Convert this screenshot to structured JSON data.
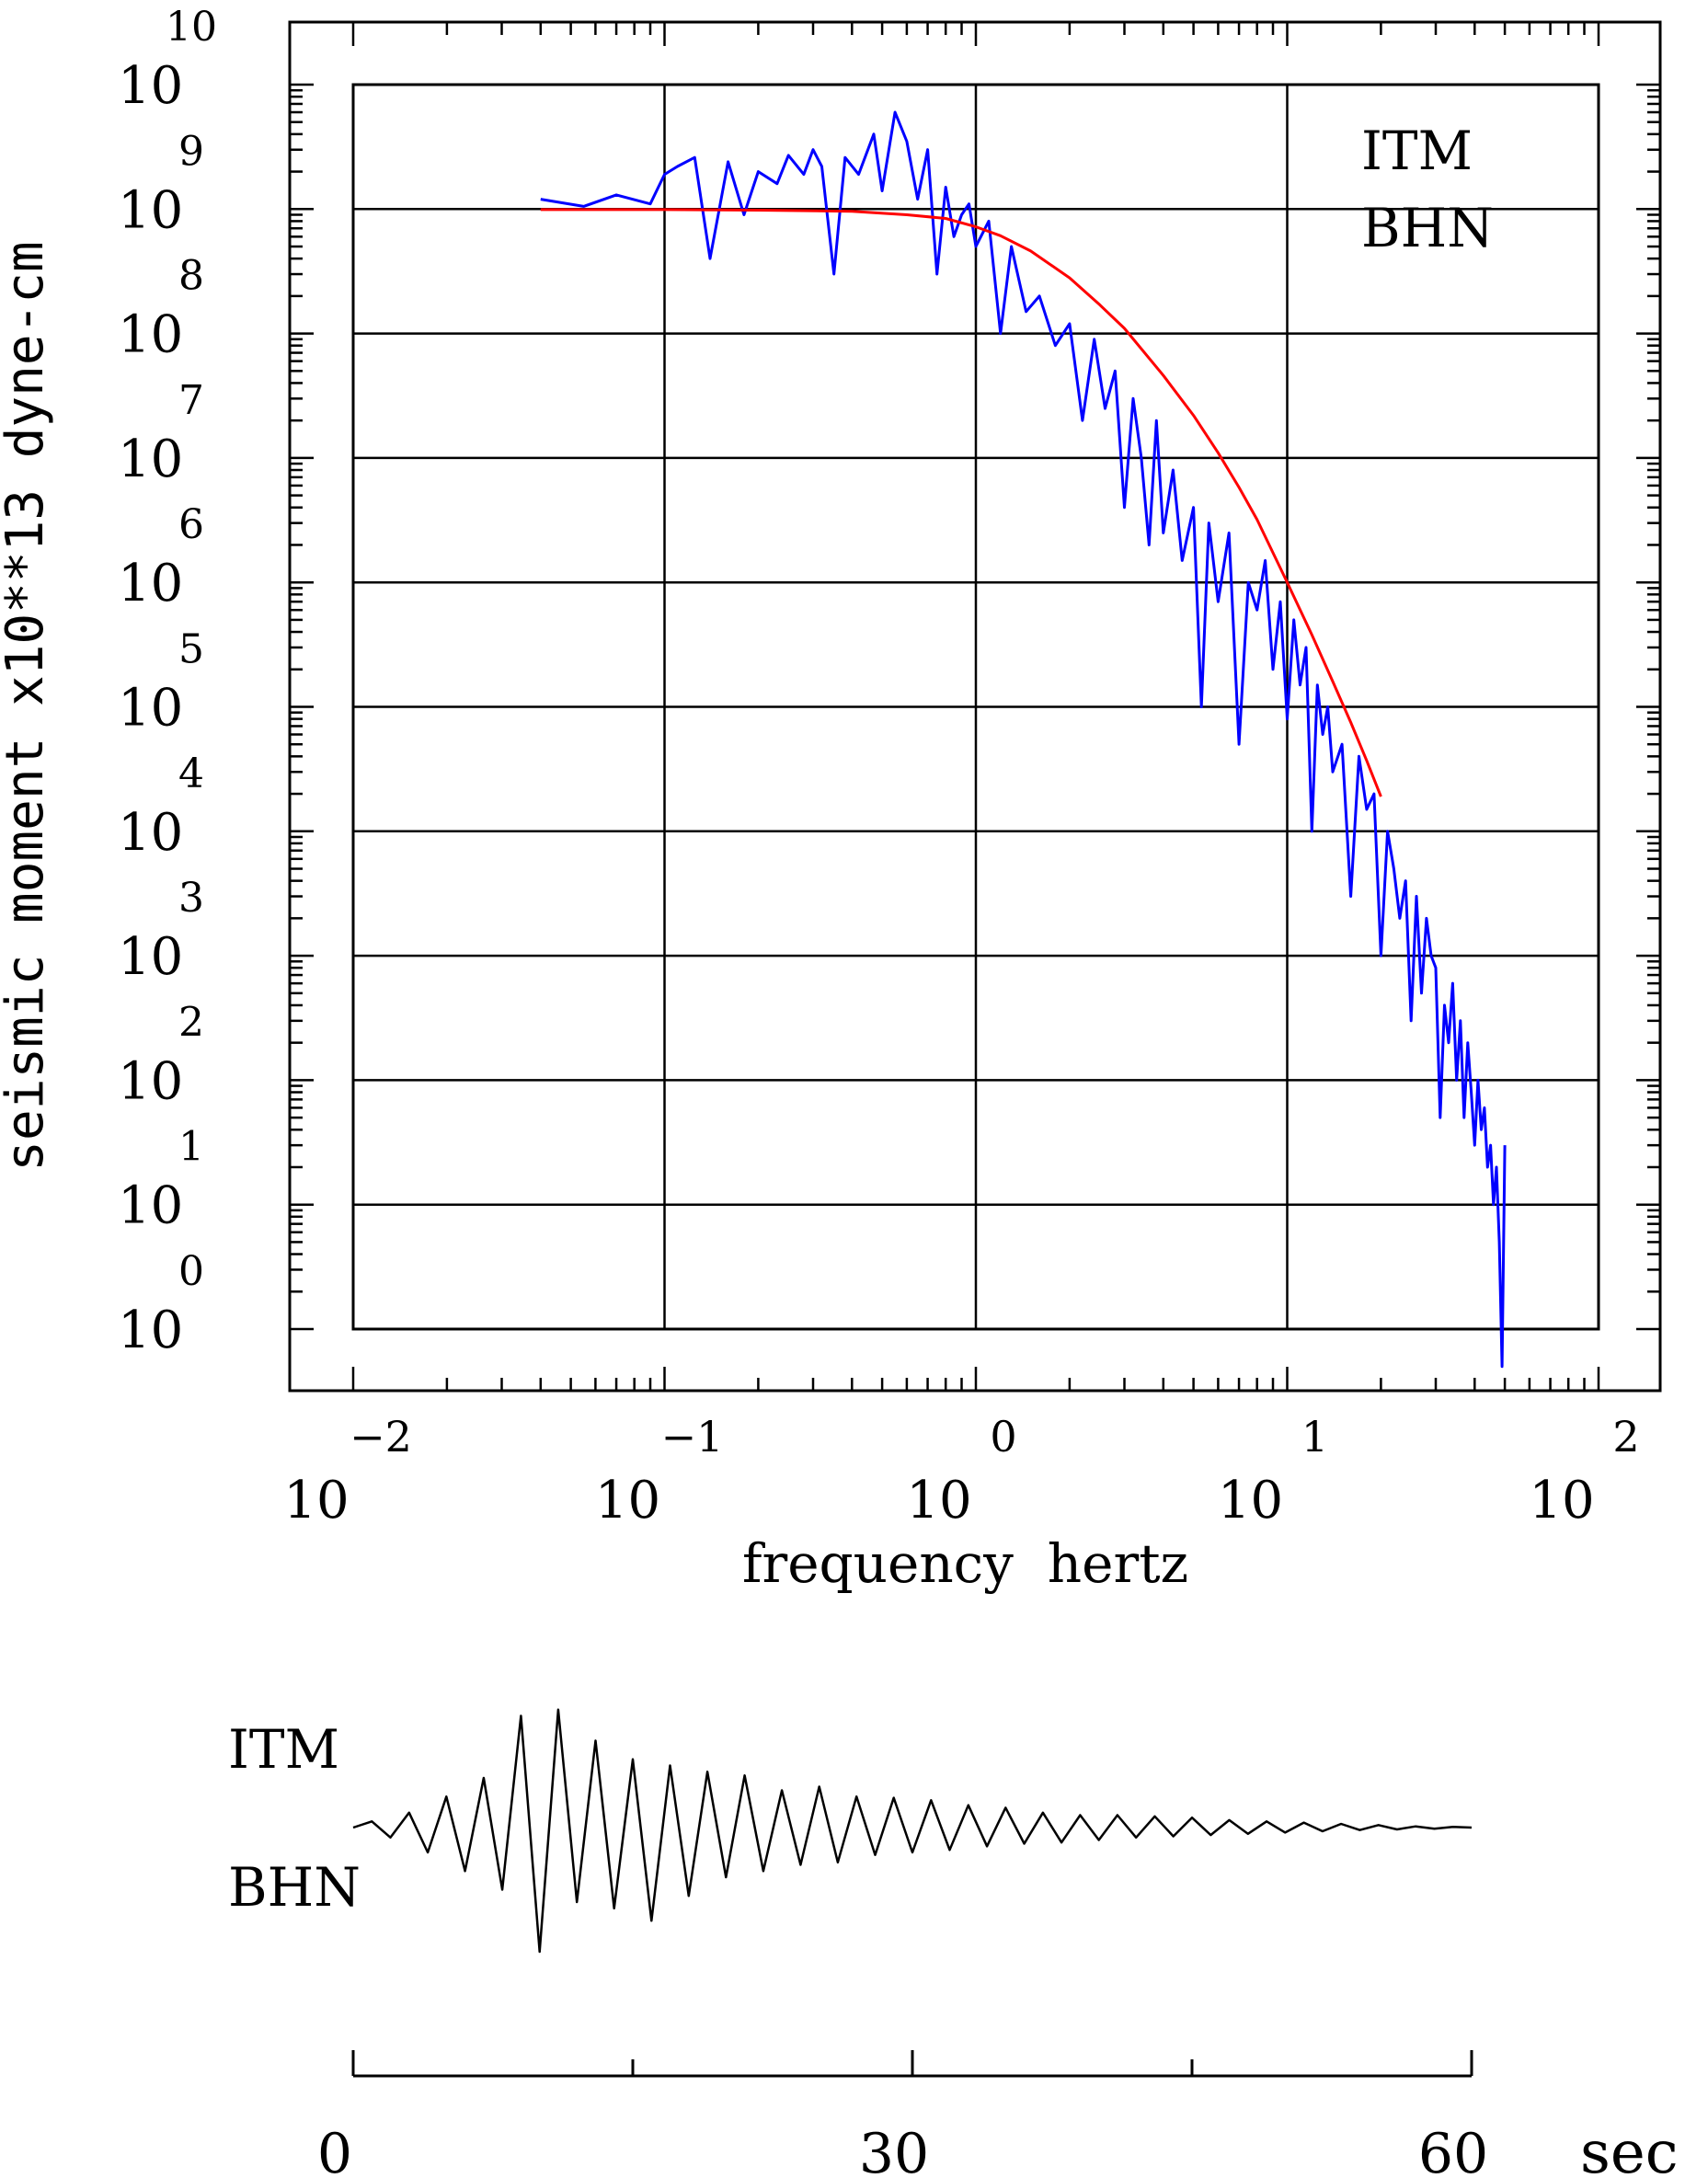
{
  "chart_data": [
    {
      "type": "line",
      "xlabel": "frequency  hertz",
      "ylabel": "seismic moment x10**13 dyne-cm",
      "x_scale": "log",
      "y_scale": "log",
      "xlim": [
        0.01,
        100
      ],
      "ylim": [
        1,
        10000000000
      ],
      "grid": true,
      "x_ticks": [
        {
          "base": "10",
          "exp": "−2"
        },
        {
          "base": "10",
          "exp": "−1"
        },
        {
          "base": "10",
          "exp": "0"
        },
        {
          "base": "10",
          "exp": "1"
        },
        {
          "base": "10",
          "exp": "2"
        }
      ],
      "y_ticks": [
        {
          "base": "10",
          "exp": "0"
        },
        {
          "base": "10",
          "exp": "1"
        },
        {
          "base": "10",
          "exp": "2"
        },
        {
          "base": "10",
          "exp": "3"
        },
        {
          "base": "10",
          "exp": "4"
        },
        {
          "base": "10",
          "exp": "5"
        },
        {
          "base": "10",
          "exp": "6"
        },
        {
          "base": "10",
          "exp": "7"
        },
        {
          "base": "10",
          "exp": "8"
        },
        {
          "base": "10",
          "exp": "9"
        },
        {
          "base": "10",
          "exp": "10"
        }
      ],
      "annotations": [
        "ITM",
        "BHN"
      ],
      "series": [
        {
          "color": "#0000ff",
          "x": [
            0.04,
            0.055,
            0.07,
            0.09,
            0.1,
            0.11,
            0.125,
            0.14,
            0.16,
            0.18,
            0.2,
            0.23,
            0.25,
            0.28,
            0.3,
            0.32,
            0.35,
            0.38,
            0.42,
            0.47,
            0.5,
            0.55,
            0.6,
            0.65,
            0.7,
            0.75,
            0.8,
            0.85,
            0.9,
            0.95,
            1.0,
            1.1,
            1.2,
            1.3,
            1.45,
            1.6,
            1.8,
            2.0,
            2.2,
            2.4,
            2.6,
            2.8,
            3.0,
            3.2,
            3.4,
            3.6,
            3.8,
            4.0,
            4.3,
            4.6,
            5.0,
            5.3,
            5.6,
            6.0,
            6.5,
            7.0,
            7.5,
            8.0,
            8.5,
            9.0,
            9.5,
            10.0,
            10.5,
            11.0,
            11.5,
            12.0,
            12.5,
            13.0,
            13.5,
            14.0,
            15.0,
            16.0,
            17.0,
            18.0,
            19.0,
            20.0,
            21.0,
            22.0,
            23.0,
            24.0,
            25.0,
            26.0,
            27.0,
            28.0,
            29.0,
            30.0,
            31.0,
            32.0,
            33.0,
            34.0,
            35.0,
            36.0,
            37.0,
            38.0,
            39.0,
            40.0,
            41.0,
            42.0,
            43.0,
            44.0,
            45.0,
            46.0,
            47.0,
            48.0,
            49.0,
            50.0
          ],
          "y": [
            1200000000,
            1050000000,
            1300000000,
            1100000000,
            1900000000,
            2200000000,
            2600000000,
            400000000,
            2400000000,
            900000000,
            2000000000,
            1600000000,
            2700000000,
            1900000000,
            3000000000,
            2200000000,
            300000000,
            2600000000,
            1900000000,
            4000000000,
            1400000000,
            6000000000,
            3500000000,
            1200000000,
            3000000000,
            300000000,
            1500000000,
            600000000,
            900000000,
            1100000000,
            500000000,
            800000000,
            100000000,
            500000000,
            150000000,
            200000000,
            80000000,
            120000000,
            20000000,
            90000000,
            25000000,
            50000000,
            4000000,
            30000000,
            10000000,
            2000000,
            20000000,
            2500000,
            8000000,
            1500000,
            4000000,
            100000,
            3000000,
            700000,
            2500000,
            50000,
            1000000,
            600000,
            1500000,
            200000,
            700000,
            80000,
            500000,
            150000,
            300000,
            10000,
            150000,
            60000,
            100000,
            30000,
            50000,
            3000,
            40000,
            15000,
            20000,
            1000,
            10000,
            5000,
            2000,
            4000,
            300,
            3000,
            500,
            2000,
            1000,
            800,
            50,
            400,
            200,
            600,
            100,
            300,
            50,
            200,
            80,
            30,
            100,
            40,
            60,
            20,
            30,
            10,
            20,
            5,
            0.5,
            30
          ]
        },
        {
          "color": "#ff0000",
          "x": [
            0.04,
            0.06,
            0.1,
            0.2,
            0.4,
            0.6,
            0.8,
            1.0,
            1.2,
            1.5,
            2.0,
            2.5,
            3.0,
            4.0,
            5.0,
            6.0,
            7.0,
            8.0,
            10.0,
            12.0,
            14.0,
            16.0,
            18.0,
            20.0
          ],
          "y": [
            990000000,
            990000000,
            990000000,
            980000000,
            960000000,
            900000000,
            840000000,
            720000000,
            610000000,
            460000000,
            280000000,
            170000000,
            110000000,
            46000000,
            22000000,
            11000000,
            5800000,
            3200000,
            1000000,
            380000,
            160000,
            75000,
            37000,
            19000
          ]
        }
      ]
    },
    {
      "type": "line",
      "xlim": [
        0,
        60
      ],
      "x_unit": "sec",
      "x_ticks": [
        "0",
        "30",
        "60"
      ],
      "annotations": [
        "ITM",
        "BHN"
      ],
      "series": [
        {
          "color": "#000000",
          "x": [
            0,
            1,
            2,
            3,
            4,
            5,
            6,
            7,
            8,
            9,
            10,
            11,
            12,
            13,
            14,
            15,
            16,
            17,
            18,
            19,
            20,
            21,
            22,
            23,
            24,
            25,
            26,
            27,
            28,
            29,
            30,
            31,
            32,
            33,
            34,
            35,
            36,
            37,
            38,
            39,
            40,
            41,
            42,
            43,
            44,
            45,
            46,
            47,
            48,
            49,
            50,
            51,
            52,
            53,
            54,
            55,
            56,
            57,
            58,
            59,
            60
          ],
          "y": [
            0,
            0.05,
            -0.08,
            0.12,
            -0.2,
            0.25,
            -0.35,
            0.4,
            -0.5,
            0.9,
            -1.0,
            0.95,
            -0.6,
            0.7,
            -0.65,
            0.55,
            -0.75,
            0.5,
            -0.55,
            0.45,
            -0.4,
            0.42,
            -0.35,
            0.3,
            -0.3,
            0.33,
            -0.28,
            0.25,
            -0.22,
            0.24,
            -0.2,
            0.22,
            -0.18,
            0.18,
            -0.15,
            0.16,
            -0.13,
            0.12,
            -0.12,
            0.1,
            -0.1,
            0.1,
            -0.08,
            0.09,
            -0.07,
            0.08,
            -0.06,
            0.06,
            -0.05,
            0.05,
            -0.04,
            0.04,
            -0.03,
            0.03,
            -0.02,
            0.02,
            -0.015,
            0.01,
            -0.01,
            0.005,
            0
          ]
        }
      ]
    }
  ]
}
